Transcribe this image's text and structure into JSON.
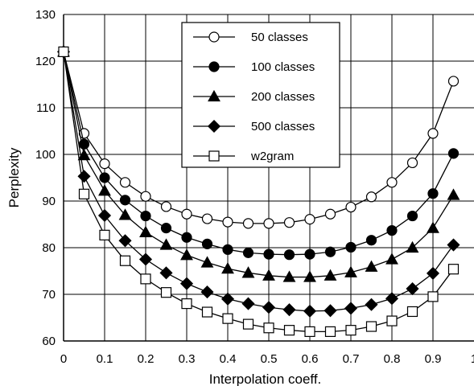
{
  "chart_data": {
    "type": "line",
    "title": "",
    "xlabel": "Interpolation coeff.",
    "ylabel": "Perplexity",
    "xlim": [
      0,
      1
    ],
    "ylim": [
      60,
      130
    ],
    "xticks": [
      "0",
      "0.1",
      "0.2",
      "0.3",
      "0.4",
      "0.5",
      "0.6",
      "0.7",
      "0.8",
      "0.9",
      "1"
    ],
    "yticks": [
      "60",
      "70",
      "80",
      "90",
      "100",
      "110",
      "120",
      "130"
    ],
    "grid": true,
    "legend_position": "top-center",
    "x": [
      0,
      0.05,
      0.1,
      0.15,
      0.2,
      0.25,
      0.3,
      0.35,
      0.4,
      0.45,
      0.5,
      0.55,
      0.6,
      0.65,
      0.7,
      0.75,
      0.8,
      0.85,
      0.9,
      0.95
    ],
    "series": [
      {
        "name": "50 classes",
        "marker": "circle",
        "fill": "#ffffff",
        "values": [
          122,
          104.5,
          98,
          94,
          91,
          88.8,
          87.2,
          86.2,
          85.5,
          85.2,
          85.2,
          85.4,
          86.1,
          87.2,
          88.7,
          90.9,
          94.0,
          98.2,
          104.5,
          115.7
        ]
      },
      {
        "name": "100 classes",
        "marker": "circle",
        "fill": "#000000",
        "values": [
          122,
          102.2,
          95.0,
          90.2,
          86.8,
          84.2,
          82.2,
          80.8,
          79.6,
          78.9,
          78.6,
          78.5,
          78.6,
          79.1,
          80.1,
          81.6,
          83.7,
          86.8,
          91.6,
          100.2
        ]
      },
      {
        "name": "200 classes",
        "marker": "triangle",
        "fill": "#000000",
        "values": [
          122,
          99.8,
          92.2,
          87.0,
          83.3,
          80.6,
          78.4,
          76.8,
          75.5,
          74.6,
          74.0,
          73.7,
          73.7,
          74.0,
          74.7,
          75.9,
          77.5,
          80.0,
          84.2,
          91.3
        ]
      },
      {
        "name": "500 classes",
        "marker": "diamond",
        "fill": "#000000",
        "values": [
          122,
          95.3,
          86.9,
          81.5,
          77.5,
          74.6,
          72.3,
          70.5,
          69.0,
          68.0,
          67.2,
          66.7,
          66.4,
          66.5,
          67.0,
          67.8,
          69.1,
          71.2,
          74.5,
          80.6
        ]
      },
      {
        "name": "w2gram",
        "marker": "square",
        "fill": "#ffffff",
        "values": [
          122,
          91.5,
          82.7,
          77.2,
          73.3,
          70.4,
          68.0,
          66.2,
          64.8,
          63.6,
          62.8,
          62.3,
          62.0,
          62.0,
          62.3,
          63.1,
          64.3,
          66.3,
          69.5,
          75.4
        ]
      }
    ]
  }
}
